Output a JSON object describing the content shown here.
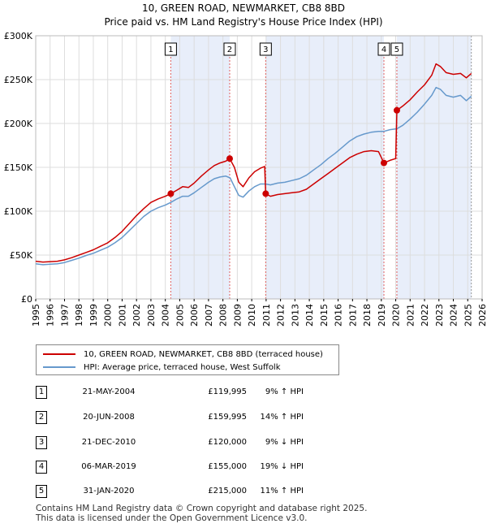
{
  "title_line1": "10, GREEN ROAD, NEWMARKET, CB8 8BD",
  "title_line2": "Price paid vs. HM Land Registry's House Price Index (HPI)",
  "colors": {
    "property": "#cc0000",
    "hpi": "#6699cc",
    "shade": "#e8eefa",
    "grid": "#dddddd",
    "marker_line": "#e06060"
  },
  "chart_data": {
    "type": "line",
    "xlim": [
      1995,
      2026
    ],
    "ylim": [
      0,
      300000
    ],
    "x_ticks": [
      "1995",
      "1996",
      "1997",
      "1998",
      "1999",
      "2000",
      "2001",
      "2002",
      "2003",
      "2004",
      "2005",
      "2006",
      "2007",
      "2008",
      "2009",
      "2010",
      "2011",
      "2012",
      "2013",
      "2014",
      "2015",
      "2016",
      "2017",
      "2018",
      "2019",
      "2020",
      "2021",
      "2022",
      "2023",
      "2024",
      "2025",
      "2026"
    ],
    "y_ticks": [
      {
        "value": 0,
        "label": "£0"
      },
      {
        "value": 50000,
        "label": "£50K"
      },
      {
        "value": 100000,
        "label": "£100K"
      },
      {
        "value": 150000,
        "label": "£150K"
      },
      {
        "value": 200000,
        "label": "£200K"
      },
      {
        "value": 250000,
        "label": "£250K"
      },
      {
        "value": 300000,
        "label": "£300K"
      }
    ],
    "shaded_spans": [
      [
        2004.38,
        2008.47
      ],
      [
        2010.97,
        2019.18
      ],
      [
        2020.08,
        2025.25
      ]
    ],
    "series": [
      {
        "name": "10, GREEN ROAD, NEWMARKET, CB8 8BD (terraced house)",
        "color": "#cc0000",
        "points": [
          [
            1995,
            43000
          ],
          [
            1995.5,
            42000
          ],
          [
            1996,
            42500
          ],
          [
            1996.5,
            43000
          ],
          [
            1997,
            44500
          ],
          [
            1997.5,
            47000
          ],
          [
            1998,
            50000
          ],
          [
            1998.5,
            53000
          ],
          [
            1999,
            56000
          ],
          [
            1999.5,
            60000
          ],
          [
            2000,
            64000
          ],
          [
            2000.5,
            70000
          ],
          [
            2001,
            77000
          ],
          [
            2001.5,
            86000
          ],
          [
            2002,
            95000
          ],
          [
            2002.5,
            103000
          ],
          [
            2003,
            110000
          ],
          [
            2003.5,
            114000
          ],
          [
            2004,
            117000
          ],
          [
            2004.38,
            119995
          ],
          [
            2004.8,
            124000
          ],
          [
            2005.2,
            128000
          ],
          [
            2005.6,
            127000
          ],
          [
            2006,
            132000
          ],
          [
            2006.5,
            140000
          ],
          [
            2007,
            147000
          ],
          [
            2007.4,
            152000
          ],
          [
            2007.8,
            155000
          ],
          [
            2008.2,
            157000
          ],
          [
            2008.47,
            159995
          ],
          [
            2008.8,
            150000
          ],
          [
            2009.1,
            133000
          ],
          [
            2009.4,
            128000
          ],
          [
            2009.8,
            138000
          ],
          [
            2010.2,
            145000
          ],
          [
            2010.6,
            149000
          ],
          [
            2010.9,
            151000
          ],
          [
            2010.97,
            120000
          ],
          [
            2011.3,
            117000
          ],
          [
            2011.8,
            119000
          ],
          [
            2012.3,
            120000
          ],
          [
            2012.8,
            121000
          ],
          [
            2013.3,
            122000
          ],
          [
            2013.8,
            125000
          ],
          [
            2014.3,
            131000
          ],
          [
            2014.8,
            137000
          ],
          [
            2015.3,
            143000
          ],
          [
            2015.8,
            149000
          ],
          [
            2016.3,
            155000
          ],
          [
            2016.8,
            161000
          ],
          [
            2017.3,
            165000
          ],
          [
            2017.8,
            168000
          ],
          [
            2018.3,
            169000
          ],
          [
            2018.8,
            168000
          ],
          [
            2019.18,
            155000
          ],
          [
            2019.6,
            158000
          ],
          [
            2020.0,
            160000
          ],
          [
            2020.08,
            215000
          ],
          [
            2020.5,
            220000
          ],
          [
            2021,
            227000
          ],
          [
            2021.5,
            236000
          ],
          [
            2022,
            244000
          ],
          [
            2022.5,
            255000
          ],
          [
            2022.8,
            268000
          ],
          [
            2023.1,
            265000
          ],
          [
            2023.5,
            258000
          ],
          [
            2024,
            256000
          ],
          [
            2024.5,
            257000
          ],
          [
            2024.9,
            252000
          ],
          [
            2025.25,
            257000
          ]
        ]
      },
      {
        "name": "HPI: Average price, terraced house, West Suffolk",
        "color": "#6699cc",
        "points": [
          [
            1995,
            40000
          ],
          [
            1995.5,
            39000
          ],
          [
            1996,
            39500
          ],
          [
            1996.5,
            40000
          ],
          [
            1997,
            41500
          ],
          [
            1997.5,
            44000
          ],
          [
            1998,
            46500
          ],
          [
            1998.5,
            49500
          ],
          [
            1999,
            52000
          ],
          [
            1999.5,
            55500
          ],
          [
            2000,
            59000
          ],
          [
            2000.5,
            64000
          ],
          [
            2001,
            70000
          ],
          [
            2001.5,
            78000
          ],
          [
            2002,
            86000
          ],
          [
            2002.5,
            94000
          ],
          [
            2003,
            100000
          ],
          [
            2003.5,
            104000
          ],
          [
            2004,
            107000
          ],
          [
            2004.38,
            110000
          ],
          [
            2004.8,
            114000
          ],
          [
            2005.2,
            117000
          ],
          [
            2005.6,
            117000
          ],
          [
            2006,
            121000
          ],
          [
            2006.5,
            127000
          ],
          [
            2007,
            133000
          ],
          [
            2007.4,
            137000
          ],
          [
            2007.8,
            139000
          ],
          [
            2008.2,
            140000
          ],
          [
            2008.5,
            138000
          ],
          [
            2008.8,
            128000
          ],
          [
            2009.1,
            118000
          ],
          [
            2009.4,
            116000
          ],
          [
            2009.8,
            123000
          ],
          [
            2010.2,
            128000
          ],
          [
            2010.6,
            131000
          ],
          [
            2010.97,
            131000
          ],
          [
            2011.3,
            130000
          ],
          [
            2011.8,
            132000
          ],
          [
            2012.3,
            133000
          ],
          [
            2012.8,
            135000
          ],
          [
            2013.3,
            137000
          ],
          [
            2013.8,
            141000
          ],
          [
            2014.3,
            147000
          ],
          [
            2014.8,
            153000
          ],
          [
            2015.3,
            160000
          ],
          [
            2015.8,
            166000
          ],
          [
            2016.3,
            173000
          ],
          [
            2016.8,
            180000
          ],
          [
            2017.3,
            185000
          ],
          [
            2017.8,
            188000
          ],
          [
            2018.3,
            190000
          ],
          [
            2018.8,
            191000
          ],
          [
            2019.18,
            191000
          ],
          [
            2019.6,
            193000
          ],
          [
            2020.08,
            194000
          ],
          [
            2020.5,
            198000
          ],
          [
            2021,
            205000
          ],
          [
            2021.5,
            213000
          ],
          [
            2022,
            222000
          ],
          [
            2022.5,
            232000
          ],
          [
            2022.8,
            241000
          ],
          [
            2023.1,
            239000
          ],
          [
            2023.5,
            232000
          ],
          [
            2024,
            230000
          ],
          [
            2024.5,
            232000
          ],
          [
            2024.9,
            226000
          ],
          [
            2025.25,
            231000
          ]
        ]
      }
    ],
    "markers": [
      {
        "id": "1",
        "x": 2004.38,
        "y": 119995
      },
      {
        "id": "2",
        "x": 2008.47,
        "y": 159995
      },
      {
        "id": "3",
        "x": 2010.97,
        "y": 120000
      },
      {
        "id": "4",
        "x": 2019.18,
        "y": 155000
      },
      {
        "id": "5",
        "x": 2020.08,
        "y": 215000
      }
    ],
    "forecast_start": 2025.25
  },
  "legend": {
    "property_label": "10, GREEN ROAD, NEWMARKET, CB8 8BD (terraced house)",
    "hpi_label": "HPI: Average price, terraced house, West Suffolk"
  },
  "transactions": [
    {
      "id": "1",
      "date": "21-MAY-2004",
      "price": "£119,995",
      "hpi": "9% ↑ HPI"
    },
    {
      "id": "2",
      "date": "20-JUN-2008",
      "price": "£159,995",
      "hpi": "14% ↑ HPI"
    },
    {
      "id": "3",
      "date": "21-DEC-2010",
      "price": "£120,000",
      "hpi": "9% ↓ HPI"
    },
    {
      "id": "4",
      "date": "06-MAR-2019",
      "price": "£155,000",
      "hpi": "19% ↓ HPI"
    },
    {
      "id": "5",
      "date": "31-JAN-2020",
      "price": "£215,000",
      "hpi": "11% ↑ HPI"
    }
  ],
  "footer": {
    "line1": "Contains HM Land Registry data © Crown copyright and database right 2025.",
    "line2": "This data is licensed under the Open Government Licence v3.0."
  }
}
